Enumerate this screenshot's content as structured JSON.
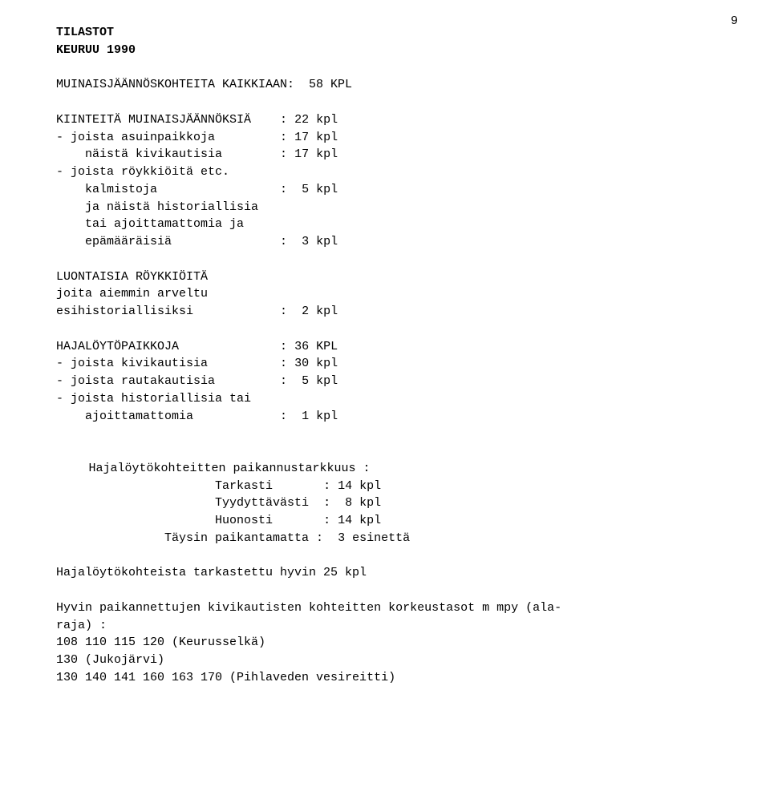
{
  "page_number": "9",
  "title1": "TILASTOT",
  "title2": "KEURUU 1990",
  "sect1": {
    "label": "MUINAISJÄÄNNÖSKOHTEITA KAIKKIAAN:  58 KPL"
  },
  "sect2": {
    "r1": {
      "label": "KIINTEITÄ MUINAISJÄÄNNÖKSIÄ    ",
      "sep": ": ",
      "val": "22 kpl"
    },
    "r2": {
      "label": "- joista asuinpaikkoja         ",
      "sep": ": ",
      "val": "17 kpl"
    },
    "r3": {
      "label": "    näistä kivikautisia        ",
      "sep": ": ",
      "val": "17 kpl"
    },
    "r4": {
      "label": "- joista röykkiöitä etc."
    },
    "r5": {
      "label": "    kalmistoja                 ",
      "sep": ":  ",
      "val": "5 kpl"
    },
    "r6": {
      "label": "    ja näistä historiallisia"
    },
    "r7": {
      "label": "    tai ajoittamattomia ja"
    },
    "r8": {
      "label": "    epämääräisiä               ",
      "sep": ":  ",
      "val": "3 kpl"
    }
  },
  "sect3": {
    "r1": {
      "label": "LUONTAISIA RÖYKKIÖITÄ"
    },
    "r2": {
      "label": "joita aiemmin arveltu"
    },
    "r3": {
      "label": "esihistoriallisiksi            ",
      "sep": ":  ",
      "val": "2 kpl"
    }
  },
  "sect4": {
    "r1": {
      "label": "HAJALÖYTÖPAIKKOJA              ",
      "sep": ": ",
      "val": "36 KPL"
    },
    "r2": {
      "label": "- joista kivikautisia          ",
      "sep": ": ",
      "val": "30 kpl"
    },
    "r3": {
      "label": "- joista rautakautisia         ",
      "sep": ":  ",
      "val": "5 kpl"
    },
    "r4": {
      "label": "- joista historiallisia tai"
    },
    "r5": {
      "label": "    ajoittamattomia            ",
      "sep": ":  ",
      "val": "1 kpl"
    }
  },
  "sect5": {
    "heading": "Hajalöytökohteitten paikannustarkkuus :",
    "r1": {
      "label": "Tarkasti       ",
      "sep": ": ",
      "val": "14 kpl"
    },
    "r2": {
      "label": "Tyydyttävästi  ",
      "sep": ":  ",
      "val": "8 kpl"
    },
    "r3": {
      "label": "Huonosti       ",
      "sep": ": ",
      "val": "14 kpl"
    },
    "r4": {
      "label": "Täysin paikantamatta :  ",
      "val": "3 esinettä"
    }
  },
  "line1": "Hajalöytökohteista tarkastettu hyvin 25 kpl",
  "para1": "Hyvin paikannettujen kivikautisten kohteitten korkeustasot m mpy (ala-",
  "para1b": "raja) :",
  "list1": "108 110 115 120 (Keurusselkä)",
  "list2": "130 (Jukojärvi)",
  "list3": "130 140 141 160 163 170 (Pihlaveden vesireitti)"
}
